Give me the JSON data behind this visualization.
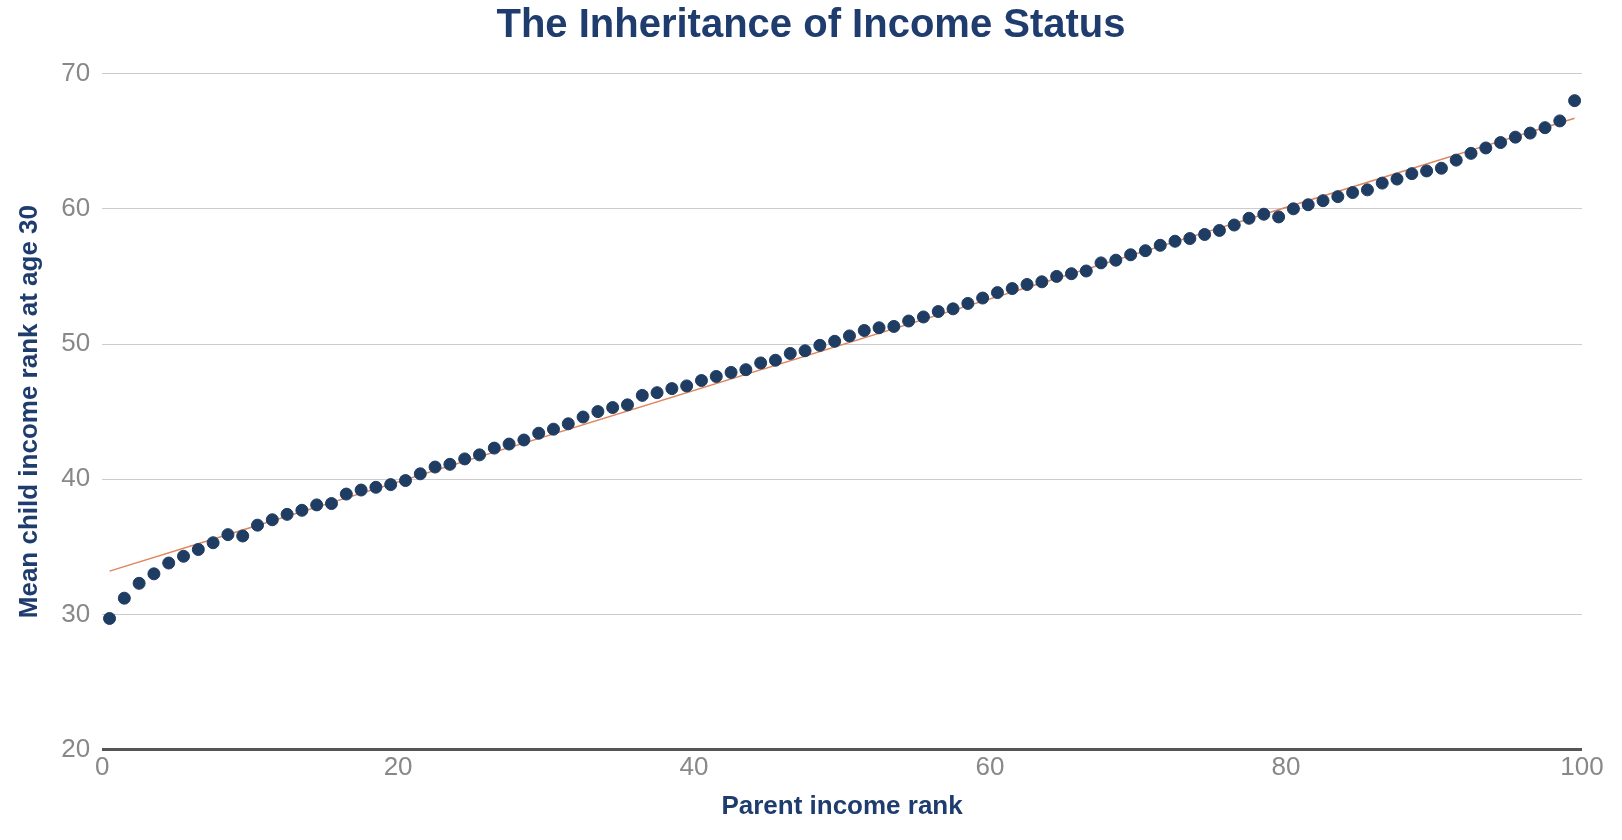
{
  "chart_data": {
    "type": "scatter",
    "title": "The Inheritance of Income Status",
    "xlabel": "Parent income rank",
    "ylabel": "Mean child income rank at age 30",
    "x": [
      0.5,
      1.5,
      2.5,
      3.5,
      4.5,
      5.5,
      6.5,
      7.5,
      8.5,
      9.5,
      10.5,
      11.5,
      12.5,
      13.5,
      14.5,
      15.5,
      16.5,
      17.5,
      18.5,
      19.5,
      20.5,
      21.5,
      22.5,
      23.5,
      24.5,
      25.5,
      26.5,
      27.5,
      28.5,
      29.5,
      30.5,
      31.5,
      32.5,
      33.5,
      34.5,
      35.5,
      36.5,
      37.5,
      38.5,
      39.5,
      40.5,
      41.5,
      42.5,
      43.5,
      44.5,
      45.5,
      46.5,
      47.5,
      48.5,
      49.5,
      50.5,
      51.5,
      52.5,
      53.5,
      54.5,
      55.5,
      56.5,
      57.5,
      58.5,
      59.5,
      60.5,
      61.5,
      62.5,
      63.5,
      64.5,
      65.5,
      66.5,
      67.5,
      68.5,
      69.5,
      70.5,
      71.5,
      72.5,
      73.5,
      74.5,
      75.5,
      76.5,
      77.5,
      78.5,
      79.5,
      80.5,
      81.5,
      82.5,
      83.5,
      84.5,
      85.5,
      86.5,
      87.5,
      88.5,
      89.5,
      90.5,
      91.5,
      92.5,
      93.5,
      94.5,
      95.5,
      96.5,
      97.5,
      98.5,
      99.5
    ],
    "series": [
      {
        "marker": "circle",
        "color": "#1f3c63",
        "values": [
          29.7,
          31.2,
          32.3,
          33.0,
          33.8,
          34.3,
          34.8,
          35.3,
          35.9,
          35.8,
          36.6,
          37.0,
          37.4,
          37.7,
          38.1,
          38.2,
          38.9,
          39.2,
          39.4,
          39.6,
          39.9,
          40.4,
          40.9,
          41.1,
          41.5,
          41.8,
          42.3,
          42.6,
          42.9,
          43.4,
          43.7,
          44.1,
          44.6,
          45.0,
          45.3,
          45.5,
          46.2,
          46.4,
          46.7,
          46.9,
          47.3,
          47.6,
          47.9,
          48.1,
          48.6,
          48.8,
          49.3,
          49.5,
          49.9,
          50.2,
          50.6,
          51.0,
          51.2,
          51.3,
          51.7,
          52.0,
          52.4,
          52.6,
          53.0,
          53.4,
          53.8,
          54.1,
          54.4,
          54.6,
          55.0,
          55.2,
          55.4,
          56.0,
          56.2,
          56.6,
          56.9,
          57.3,
          57.6,
          57.8,
          58.1,
          58.4,
          58.8,
          59.3,
          59.6,
          59.4,
          60.0,
          60.3,
          60.6,
          60.9,
          61.2,
          61.4,
          61.9,
          62.2,
          62.6,
          62.8,
          63.0,
          63.6,
          64.1,
          64.5,
          64.9,
          65.3,
          65.6,
          66.0,
          66.5,
          68.0
        ]
      },
      {
        "type": "line",
        "color": "#e0865e",
        "x": [
          0.5,
          99.5
        ],
        "values": [
          33.2,
          66.7
        ]
      }
    ],
    "xlim": [
      0,
      100
    ],
    "xticks": [
      0,
      20,
      40,
      60,
      80,
      100
    ],
    "ylim": [
      20,
      70
    ],
    "yticks": [
      20,
      30,
      40,
      50,
      60,
      70
    ],
    "grid": "y",
    "legend": false
  }
}
